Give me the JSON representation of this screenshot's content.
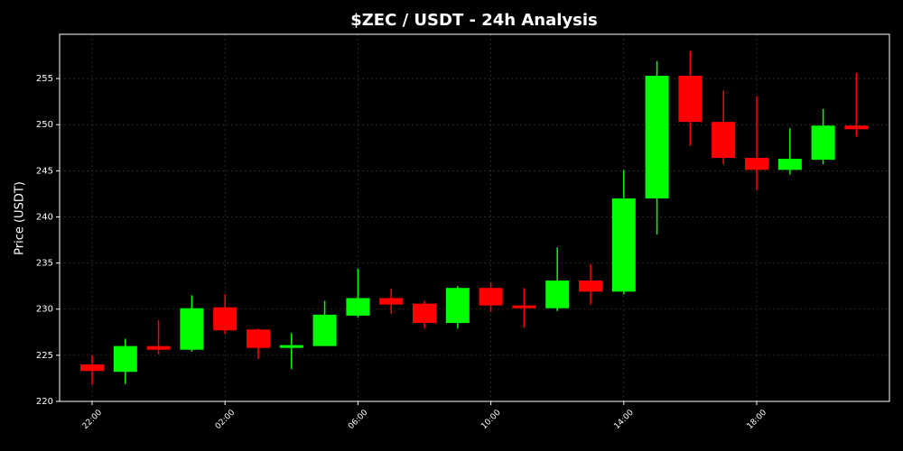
{
  "chart_data": {
    "type": "candlestick",
    "title": "$ZEC / USDT - 24h Analysis",
    "y_label": "Price (USDT)",
    "categories": [
      "22:00",
      null,
      null,
      null,
      "02:00",
      null,
      null,
      null,
      "06:00",
      null,
      null,
      null,
      "10:00",
      null,
      null,
      null,
      "14:00",
      null,
      null,
      null,
      "18:00",
      null,
      null,
      null
    ],
    "open": [
      224.0,
      223.2,
      226.0,
      225.6,
      230.2,
      227.8,
      225.8,
      226.0,
      229.3,
      231.2,
      230.6,
      228.5,
      232.3,
      230.4,
      230.1,
      233.1,
      231.9,
      242.0,
      255.3,
      250.3,
      246.4,
      245.1,
      246.2,
      249.9
    ],
    "high": [
      225.0,
      226.8,
      228.8,
      231.5,
      231.6,
      227.9,
      227.4,
      230.9,
      234.4,
      232.2,
      230.9,
      232.5,
      232.9,
      232.3,
      236.7,
      234.9,
      245.1,
      256.9,
      258.0,
      253.7,
      253.1,
      249.6,
      251.7,
      255.6
    ],
    "low": [
      221.8,
      221.9,
      225.1,
      225.4,
      227.3,
      224.6,
      223.5,
      226.0,
      229.1,
      229.5,
      227.9,
      227.9,
      229.7,
      228.0,
      229.8,
      230.5,
      231.6,
      238.1,
      247.7,
      245.7,
      242.9,
      244.6,
      245.7,
      248.7
    ],
    "close": [
      223.3,
      226.0,
      225.6,
      230.1,
      227.7,
      225.8,
      226.1,
      229.4,
      231.2,
      230.5,
      228.5,
      232.3,
      230.4,
      230.1,
      233.1,
      231.9,
      242.0,
      255.3,
      250.3,
      246.4,
      245.1,
      246.3,
      249.9,
      249.5
    ],
    "up_color": "#00ff00",
    "down_color": "#ff0000",
    "ylim": [
      220,
      259.8
    ],
    "yticks": [
      220,
      225,
      230,
      235,
      240,
      245,
      250,
      255
    ],
    "grid": true
  }
}
